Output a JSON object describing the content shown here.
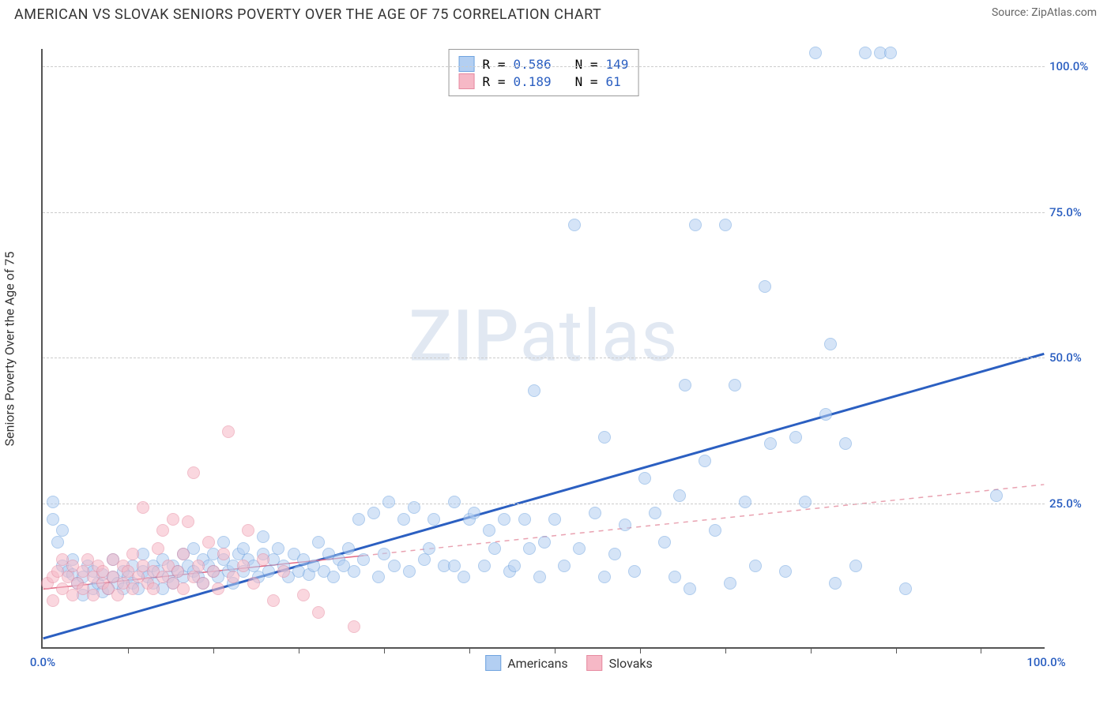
{
  "header": {
    "title": "AMERICAN VS SLOVAK SENIORS POVERTY OVER THE AGE OF 75 CORRELATION CHART",
    "source": "Source: ZipAtlas.com"
  },
  "chart": {
    "type": "scatter",
    "yaxis_title": "Seniors Poverty Over the Age of 75",
    "watermark": "ZIPatlas",
    "xlim": [
      0,
      100
    ],
    "ylim": [
      0,
      103
    ],
    "xticks": [
      0,
      100
    ],
    "xtick_labels": [
      "0.0%",
      "100.0%"
    ],
    "xtick_marks": [
      8.5,
      17,
      25.5,
      34,
      42.5,
      51,
      59.5,
      68,
      76.5,
      85,
      93.5
    ],
    "yticks": [
      25,
      50,
      75,
      100
    ],
    "ytick_labels": [
      "25.0%",
      "50.0%",
      "75.0%",
      "100.0%"
    ],
    "ytick_color": "#2b5fc1",
    "xtick_color": "#2b5fc1",
    "grid_color": "#cccccc",
    "background_color": "#ffffff",
    "marker_radius": 8,
    "marker_border_width": 1.5,
    "series": [
      {
        "name": "Americans",
        "label": "Americans",
        "fill": "#b3cff2",
        "stroke": "#6fa3df",
        "fill_opacity": 0.55,
        "stats": {
          "R": "0.586",
          "N": "149"
        },
        "trend": {
          "type": "solid",
          "color": "#2b5fc1",
          "width": 3,
          "x1": 0,
          "y1": 1.5,
          "x2": 100,
          "y2": 50.5
        },
        "points": [
          [
            1,
            25
          ],
          [
            1,
            22
          ],
          [
            1.5,
            18
          ],
          [
            2,
            20
          ],
          [
            2,
            14
          ],
          [
            2.5,
            13
          ],
          [
            3,
            12.5
          ],
          [
            3,
            15
          ],
          [
            3.5,
            11
          ],
          [
            4,
            12
          ],
          [
            4,
            9
          ],
          [
            4.5,
            14
          ],
          [
            5,
            10
          ],
          [
            5,
            13
          ],
          [
            5.5,
            11
          ],
          [
            6,
            12.5
          ],
          [
            6,
            9.5
          ],
          [
            6.5,
            10
          ],
          [
            7,
            12
          ],
          [
            7,
            15
          ],
          [
            7.5,
            11
          ],
          [
            8,
            13
          ],
          [
            8,
            10
          ],
          [
            8.5,
            12
          ],
          [
            9,
            11
          ],
          [
            9,
            14
          ],
          [
            9.5,
            10
          ],
          [
            10,
            13
          ],
          [
            10,
            16
          ],
          [
            10.5,
            12
          ],
          [
            11,
            11
          ],
          [
            11,
            14
          ],
          [
            11.5,
            13
          ],
          [
            12,
            10
          ],
          [
            12,
            15
          ],
          [
            12.5,
            12
          ],
          [
            13,
            14
          ],
          [
            13,
            11
          ],
          [
            13.5,
            13
          ],
          [
            14,
            12
          ],
          [
            14,
            16
          ],
          [
            14.5,
            14
          ],
          [
            15,
            13
          ],
          [
            15,
            17
          ],
          [
            15.5,
            12
          ],
          [
            16,
            15
          ],
          [
            16,
            11
          ],
          [
            16.5,
            14
          ],
          [
            17,
            13
          ],
          [
            17,
            16
          ],
          [
            17.5,
            12
          ],
          [
            18,
            15
          ],
          [
            18,
            18
          ],
          [
            18.5,
            13
          ],
          [
            19,
            14
          ],
          [
            19,
            11
          ],
          [
            19.5,
            16
          ],
          [
            20,
            13
          ],
          [
            20,
            17
          ],
          [
            20.5,
            15
          ],
          [
            21,
            14
          ],
          [
            21.5,
            12
          ],
          [
            22,
            16
          ],
          [
            22,
            19
          ],
          [
            22.5,
            13
          ],
          [
            23,
            15
          ],
          [
            23.5,
            17
          ],
          [
            24,
            14
          ],
          [
            24.5,
            12
          ],
          [
            25,
            16
          ],
          [
            25.5,
            13
          ],
          [
            26,
            15
          ],
          [
            26.5,
            12.5
          ],
          [
            27,
            14
          ],
          [
            27.5,
            18
          ],
          [
            28,
            13
          ],
          [
            28.5,
            16
          ],
          [
            29,
            12
          ],
          [
            29.5,
            15
          ],
          [
            30,
            14
          ],
          [
            30.5,
            17
          ],
          [
            31,
            13
          ],
          [
            31.5,
            22
          ],
          [
            32,
            15
          ],
          [
            33,
            23
          ],
          [
            33.5,
            12
          ],
          [
            34,
            16
          ],
          [
            34.5,
            25
          ],
          [
            35,
            14
          ],
          [
            36,
            22
          ],
          [
            36.5,
            13
          ],
          [
            37,
            24
          ],
          [
            38,
            15
          ],
          [
            38.5,
            17
          ],
          [
            39,
            22
          ],
          [
            40,
            14
          ],
          [
            41,
            25
          ],
          [
            41,
            14
          ],
          [
            42,
            12
          ],
          [
            42.5,
            22
          ],
          [
            43,
            23
          ],
          [
            44,
            14
          ],
          [
            44.5,
            20
          ],
          [
            45,
            17
          ],
          [
            46,
            22
          ],
          [
            46.5,
            13
          ],
          [
            47,
            14
          ],
          [
            48,
            22
          ],
          [
            48.5,
            17
          ],
          [
            49,
            44
          ],
          [
            49.5,
            12
          ],
          [
            50,
            18
          ],
          [
            51,
            22
          ],
          [
            52,
            14
          ],
          [
            53,
            72.5
          ],
          [
            53.5,
            17
          ],
          [
            55,
            23
          ],
          [
            56,
            36
          ],
          [
            56,
            12
          ],
          [
            57,
            16
          ],
          [
            58,
            21
          ],
          [
            59,
            13
          ],
          [
            60,
            29
          ],
          [
            61,
            23
          ],
          [
            62,
            18
          ],
          [
            63,
            12
          ],
          [
            63.5,
            26
          ],
          [
            64,
            45
          ],
          [
            64.5,
            10
          ],
          [
            65,
            72.5
          ],
          [
            66,
            32
          ],
          [
            67,
            20
          ],
          [
            68,
            72.5
          ],
          [
            68.5,
            11
          ],
          [
            69,
            45
          ],
          [
            70,
            25
          ],
          [
            71,
            14
          ],
          [
            72,
            62
          ],
          [
            72.5,
            35
          ],
          [
            74,
            13
          ],
          [
            75,
            36
          ],
          [
            76,
            25
          ],
          [
            77,
            102
          ],
          [
            78,
            40
          ],
          [
            78.5,
            52
          ],
          [
            79,
            11
          ],
          [
            80,
            35
          ],
          [
            81,
            14
          ],
          [
            82,
            102
          ],
          [
            83.5,
            102
          ],
          [
            84.5,
            102
          ],
          [
            86,
            10
          ],
          [
            95,
            26
          ]
        ]
      },
      {
        "name": "Slovaks",
        "label": "Slovaks",
        "fill": "#f6b8c6",
        "stroke": "#e68aa0",
        "fill_opacity": 0.55,
        "stats": {
          "R": "0.189",
          "N": "61"
        },
        "trend": {
          "type": "solid_then_dash",
          "color_solid": "#e36a84",
          "color_dash": "#e9a2b1",
          "width": 1.5,
          "x1": 0,
          "y1": 10,
          "x2": 100,
          "y2": 28,
          "solid_until_x": 32
        },
        "points": [
          [
            0.5,
            11
          ],
          [
            1,
            12
          ],
          [
            1,
            8
          ],
          [
            1.5,
            13
          ],
          [
            2,
            10
          ],
          [
            2,
            15
          ],
          [
            2.5,
            12
          ],
          [
            3,
            9
          ],
          [
            3,
            14
          ],
          [
            3.5,
            11
          ],
          [
            4,
            13
          ],
          [
            4,
            10
          ],
          [
            4.5,
            15
          ],
          [
            5,
            12
          ],
          [
            5,
            9
          ],
          [
            5.5,
            14
          ],
          [
            6,
            11
          ],
          [
            6,
            13
          ],
          [
            6.5,
            10
          ],
          [
            7,
            15
          ],
          [
            7,
            12
          ],
          [
            7.5,
            9
          ],
          [
            8,
            14
          ],
          [
            8,
            11
          ],
          [
            8.5,
            13
          ],
          [
            9,
            10
          ],
          [
            9,
            16
          ],
          [
            9.5,
            12
          ],
          [
            10,
            24
          ],
          [
            10,
            14
          ],
          [
            10.5,
            11
          ],
          [
            11,
            13
          ],
          [
            11,
            10
          ],
          [
            11.5,
            17
          ],
          [
            12,
            12
          ],
          [
            12,
            20
          ],
          [
            12.5,
            14
          ],
          [
            13,
            11
          ],
          [
            13,
            22
          ],
          [
            13.5,
            13
          ],
          [
            14,
            10
          ],
          [
            14,
            16
          ],
          [
            14.5,
            21.5
          ],
          [
            15,
            12
          ],
          [
            15,
            30
          ],
          [
            15.5,
            14
          ],
          [
            16,
            11
          ],
          [
            16.5,
            18
          ],
          [
            17,
            13
          ],
          [
            17.5,
            10
          ],
          [
            18,
            16
          ],
          [
            18.5,
            37
          ],
          [
            19,
            12
          ],
          [
            20,
            14
          ],
          [
            20.5,
            20
          ],
          [
            21,
            11
          ],
          [
            22,
            15
          ],
          [
            23,
            8
          ],
          [
            24,
            13
          ],
          [
            26,
            9
          ],
          [
            27.5,
            6
          ],
          [
            31,
            3.5
          ]
        ]
      }
    ],
    "legend_bottom": [
      "Americans",
      "Slovaks"
    ],
    "stats_box": {
      "R_label": "R =",
      "N_label": "N =",
      "value_color": "#2b5fc1"
    }
  }
}
